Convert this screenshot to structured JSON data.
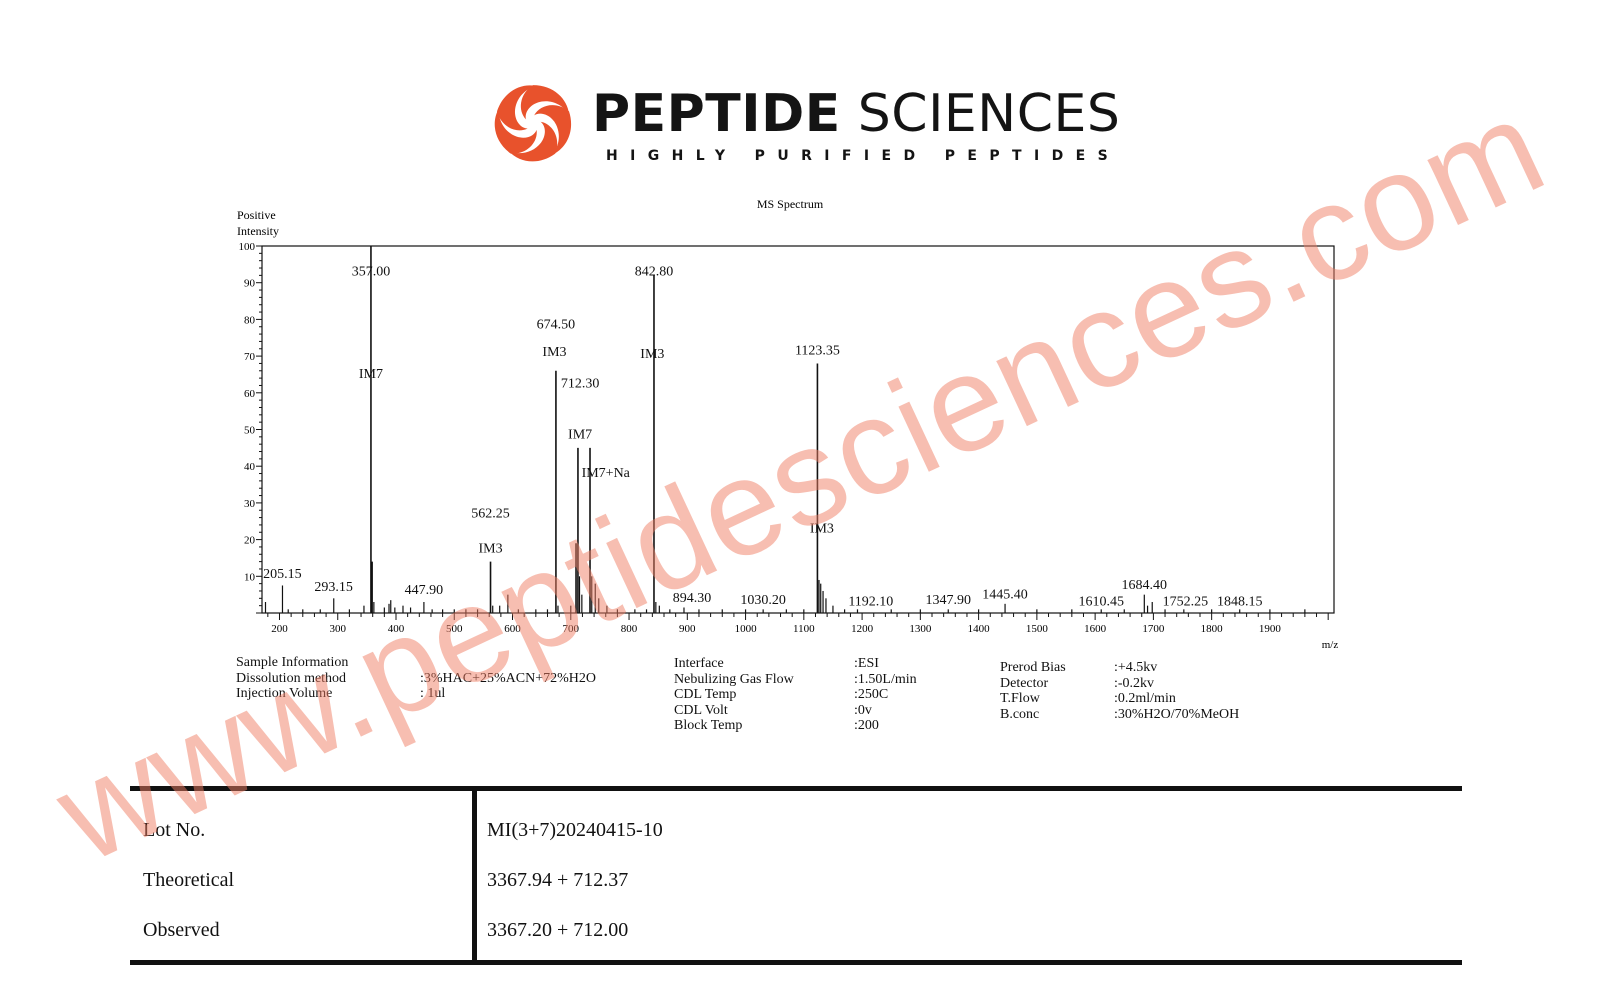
{
  "brand": {
    "name_bold": "PEPTIDE",
    "name_light": "SCIENCES",
    "tagline": "HIGHLY PURIFIED PEPTIDES",
    "accent_color": "#e8522c",
    "logo_icon": "swirl-logo-icon"
  },
  "chart_data": {
    "type": "bar",
    "title": "MS Spectrum",
    "ylabel_line1": "Positive",
    "ylabel_line2": "Intensity",
    "xlabel": "m/z",
    "xlim": [
      170,
      2010
    ],
    "ylim": [
      0,
      100
    ],
    "x_ticks": [
      200,
      300,
      400,
      500,
      600,
      700,
      800,
      900,
      1000,
      1100,
      1200,
      1300,
      1400,
      1500,
      1600,
      1700,
      1800,
      1900
    ],
    "y_ticks": [
      10,
      20,
      30,
      40,
      50,
      60,
      70,
      80,
      90,
      100
    ],
    "peaks": [
      {
        "x": 176,
        "y": 3
      },
      {
        "x": 205.15,
        "y": 7.5
      },
      {
        "x": 215,
        "y": 1
      },
      {
        "x": 240,
        "y": 1
      },
      {
        "x": 270,
        "y": 1
      },
      {
        "x": 293.15,
        "y": 4
      },
      {
        "x": 320,
        "y": 1
      },
      {
        "x": 345,
        "y": 2
      },
      {
        "x": 357,
        "y": 100
      },
      {
        "x": 359,
        "y": 14
      },
      {
        "x": 362,
        "y": 3
      },
      {
        "x": 380,
        "y": 1.5
      },
      {
        "x": 388,
        "y": 2.5
      },
      {
        "x": 391,
        "y": 3.5
      },
      {
        "x": 398,
        "y": 1.5
      },
      {
        "x": 412,
        "y": 2
      },
      {
        "x": 425,
        "y": 1.5
      },
      {
        "x": 447.9,
        "y": 3
      },
      {
        "x": 462,
        "y": 1
      },
      {
        "x": 480,
        "y": 1
      },
      {
        "x": 500,
        "y": 1
      },
      {
        "x": 520,
        "y": 1
      },
      {
        "x": 540,
        "y": 1
      },
      {
        "x": 562.25,
        "y": 14
      },
      {
        "x": 566,
        "y": 2
      },
      {
        "x": 578,
        "y": 2
      },
      {
        "x": 592,
        "y": 5
      },
      {
        "x": 610,
        "y": 1
      },
      {
        "x": 640,
        "y": 1
      },
      {
        "x": 660,
        "y": 1
      },
      {
        "x": 674.5,
        "y": 66
      },
      {
        "x": 678,
        "y": 2
      },
      {
        "x": 700,
        "y": 2
      },
      {
        "x": 709,
        "y": 19
      },
      {
        "x": 712.3,
        "y": 45
      },
      {
        "x": 715,
        "y": 10
      },
      {
        "x": 719,
        "y": 5
      },
      {
        "x": 733,
        "y": 45
      },
      {
        "x": 736,
        "y": 10
      },
      {
        "x": 742,
        "y": 8
      },
      {
        "x": 748,
        "y": 4
      },
      {
        "x": 762,
        "y": 2
      },
      {
        "x": 780,
        "y": 1
      },
      {
        "x": 810,
        "y": 1
      },
      {
        "x": 830,
        "y": 1
      },
      {
        "x": 842.8,
        "y": 92
      },
      {
        "x": 846,
        "y": 3
      },
      {
        "x": 852,
        "y": 2
      },
      {
        "x": 870,
        "y": 1
      },
      {
        "x": 894.3,
        "y": 1.5
      },
      {
        "x": 920,
        "y": 1
      },
      {
        "x": 960,
        "y": 1
      },
      {
        "x": 1000,
        "y": 1
      },
      {
        "x": 1030.2,
        "y": 1
      },
      {
        "x": 1070,
        "y": 1
      },
      {
        "x": 1100,
        "y": 1
      },
      {
        "x": 1123.35,
        "y": 68
      },
      {
        "x": 1126,
        "y": 9
      },
      {
        "x": 1129,
        "y": 8
      },
      {
        "x": 1133,
        "y": 6
      },
      {
        "x": 1138,
        "y": 4
      },
      {
        "x": 1150,
        "y": 2
      },
      {
        "x": 1170,
        "y": 1
      },
      {
        "x": 1192.1,
        "y": 1
      },
      {
        "x": 1250,
        "y": 1
      },
      {
        "x": 1300,
        "y": 1
      },
      {
        "x": 1347.9,
        "y": 1
      },
      {
        "x": 1400,
        "y": 1
      },
      {
        "x": 1445.4,
        "y": 2.5
      },
      {
        "x": 1500,
        "y": 1
      },
      {
        "x": 1560,
        "y": 1
      },
      {
        "x": 1610.45,
        "y": 1
      },
      {
        "x": 1650,
        "y": 1
      },
      {
        "x": 1684.4,
        "y": 5
      },
      {
        "x": 1690,
        "y": 2
      },
      {
        "x": 1698,
        "y": 3
      },
      {
        "x": 1720,
        "y": 1
      },
      {
        "x": 1752.25,
        "y": 1
      },
      {
        "x": 1800,
        "y": 1
      },
      {
        "x": 1848.15,
        "y": 1
      },
      {
        "x": 1900,
        "y": 1
      },
      {
        "x": 1960,
        "y": 1
      }
    ],
    "labels": [
      {
        "text": "357.00",
        "x": 357,
        "y": 92
      },
      {
        "text": "IM7",
        "x": 357,
        "y": 64
      },
      {
        "text": "205.15",
        "x": 205,
        "y": 9.5
      },
      {
        "text": "293.15",
        "x": 293,
        "y": 6
      },
      {
        "text": "447.90",
        "x": 447.9,
        "y": 5.2
      },
      {
        "text": "562.25",
        "x": 562.25,
        "y": 26
      },
      {
        "text": "IM3",
        "x": 562.25,
        "y": 16.5
      },
      {
        "text": "674.50",
        "x": 674.5,
        "y": 77.5
      },
      {
        "text": "IM3",
        "x": 672,
        "y": 70
      },
      {
        "text": "712.30",
        "x": 716,
        "y": 61.5
      },
      {
        "text": "IM7",
        "x": 716,
        "y": 47.5
      },
      {
        "text": "IM7+Na",
        "x": 760,
        "y": 37
      },
      {
        "text": "842.80",
        "x": 842.8,
        "y": 92
      },
      {
        "text": "IM3",
        "x": 840,
        "y": 69.5
      },
      {
        "text": "894.30",
        "x": 908,
        "y": 3
      },
      {
        "text": "1030.20",
        "x": 1030.2,
        "y": 2.5
      },
      {
        "text": "1123.35",
        "x": 1123.35,
        "y": 70.5
      },
      {
        "text": "IM3",
        "x": 1131,
        "y": 22
      },
      {
        "text": "1192.10",
        "x": 1215,
        "y": 2
      },
      {
        "text": "1347.90",
        "x": 1347.9,
        "y": 2.5
      },
      {
        "text": "1445.40",
        "x": 1445.4,
        "y": 4
      },
      {
        "text": "1610.45",
        "x": 1610.45,
        "y": 2
      },
      {
        "text": "1684.40",
        "x": 1684.4,
        "y": 6.5
      },
      {
        "text": "1752.25",
        "x": 1755,
        "y": 2
      },
      {
        "text": "1848.15",
        "x": 1848.15,
        "y": 2
      }
    ],
    "grid": false
  },
  "sample_info": {
    "heading": "Sample Information",
    "dissolution_label": "Dissolution method",
    "dissolution_value": ":3%HAC+25%ACN+72%H2O",
    "injection_label": "Injection Volume",
    "injection_value": ": 1ul"
  },
  "instrument": {
    "interface_label": "Interface",
    "interface_value": ":ESI",
    "gas_label": "Nebulizing Gas Flow",
    "gas_value": ":1.50L/min",
    "cdl_temp_label": "CDL Temp",
    "cdl_temp_value": ":250C",
    "cdl_volt_label": "CDL Volt",
    "cdl_volt_value": ":0v",
    "block_label": "Block Temp",
    "block_value": ":200",
    "prerod_label": "Prerod Bias",
    "prerod_value": ":+4.5kv",
    "detector_label": "Detector",
    "detector_value": ":-0.2kv",
    "tflow_label": "T.Flow",
    "tflow_value": ":0.2ml/min",
    "bconc_label": "B.conc",
    "bconc_value": ":30%H2O/70%MeOH"
  },
  "lot_table": {
    "lot_label": "Lot No.",
    "lot_value": "MI(3+7)20240415-10",
    "theoretical_label": "Theoretical",
    "theoretical_value": "3367.94 + 712.37",
    "observed_label": "Observed",
    "observed_value": "3367.20 + 712.00"
  },
  "watermark": "www.peptidesciences.com"
}
